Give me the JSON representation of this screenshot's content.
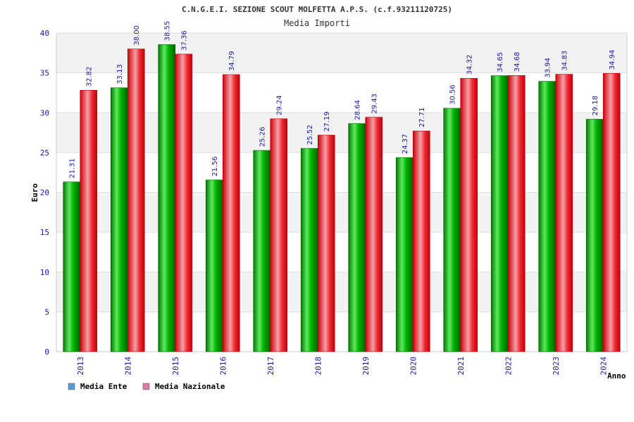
{
  "chart_data": {
    "type": "bar",
    "title": "C.N.G.E.I. SEZIONE SCOUT MOLFETTA A.P.S. (c.f.93211120725)",
    "subtitle": "Media Importi",
    "xlabel": "Anno",
    "ylabel": "Euro",
    "ylim": [
      0,
      40
    ],
    "yticks": [
      0,
      5,
      10,
      15,
      20,
      25,
      30,
      35,
      40
    ],
    "grid": true,
    "legend_position": "bottom-left",
    "categories": [
      "2013",
      "2014",
      "2015",
      "2016",
      "2017",
      "2018",
      "2019",
      "2020",
      "2021",
      "2022",
      "2023",
      "2024"
    ],
    "series": [
      {
        "name": "Media Ente",
        "color": "#00a000",
        "legend_color": "#5b9bd5",
        "values": [
          21.31,
          33.13,
          38.55,
          21.56,
          25.26,
          25.52,
          28.64,
          24.37,
          30.56,
          34.65,
          33.94,
          29.18
        ],
        "labels": [
          "21.31",
          "33.13",
          "38.55",
          "21.56",
          "25.26",
          "25.52",
          "28.64",
          "24.37",
          "30.56",
          "34.65",
          "33.94",
          "29.18"
        ]
      },
      {
        "name": "Media Nazionale",
        "color": "#e8000e",
        "legend_color": "#d97aa8",
        "values": [
          32.82,
          38.0,
          37.36,
          34.79,
          29.24,
          27.19,
          29.43,
          27.71,
          34.32,
          34.68,
          34.83,
          34.94
        ],
        "labels": [
          "32.82",
          "38.00",
          "37.36",
          "34.79",
          "29.24",
          "27.19",
          "29.43",
          "27.71",
          "34.32",
          "34.68",
          "34.83",
          "34.94"
        ]
      }
    ]
  }
}
